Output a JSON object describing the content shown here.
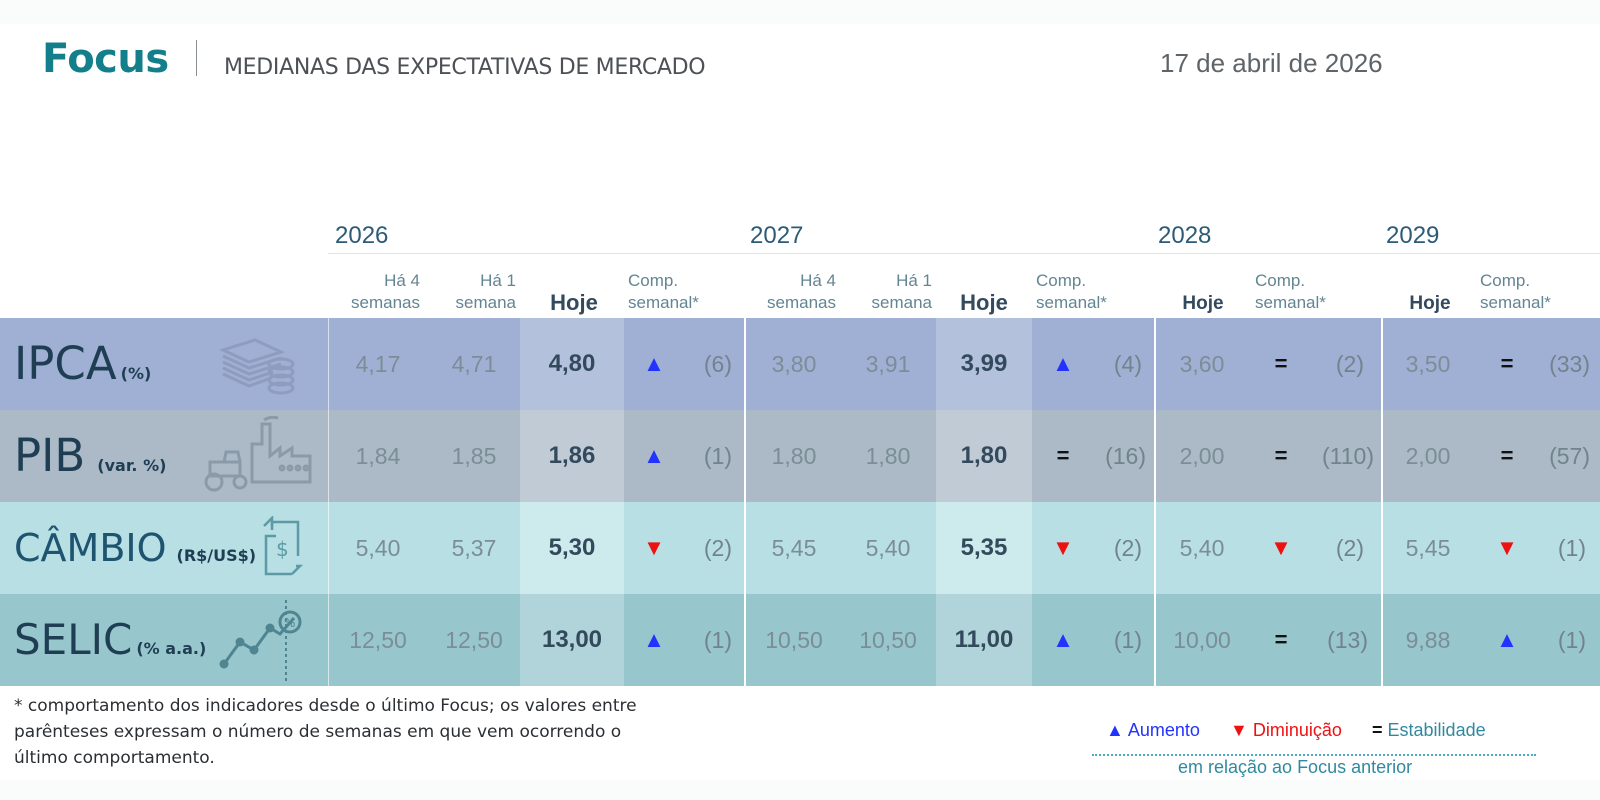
{
  "header": {
    "brand": "Focus",
    "subtitle": "MEDIANAS DAS EXPECTATIVAS DE MERCADO",
    "date": "17 de abril de 2026"
  },
  "years": [
    "2026",
    "2027",
    "2028",
    "2029"
  ],
  "column_headers": {
    "ha4_line1": "Há 4",
    "ha4_line2": "semanas",
    "ha1_line1": "Há 1",
    "ha1_line2": "semana",
    "hoje": "Hoje",
    "comp_line1": "Comp.",
    "comp_line2": "semanal*"
  },
  "rows": [
    {
      "name": "IPCA",
      "unit": "(%)",
      "icon": "coins-icon",
      "y2026": {
        "ha4": "4,17",
        "ha1": "4,71",
        "hoje": "4,80",
        "dir": "up",
        "weeks": "(6)"
      },
      "y2027": {
        "ha4": "3,80",
        "ha1": "3,91",
        "hoje": "3,99",
        "dir": "up",
        "weeks": "(4)"
      },
      "y2028": {
        "hoje": "3,60",
        "dir": "eq",
        "weeks": "(2)"
      },
      "y2029": {
        "hoje": "3,50",
        "dir": "eq",
        "weeks": "(33)"
      }
    },
    {
      "name": "PIB",
      "unit": "(var. %)",
      "icon": "factory-tractor-icon",
      "y2026": {
        "ha4": "1,84",
        "ha1": "1,85",
        "hoje": "1,86",
        "dir": "up",
        "weeks": "(1)"
      },
      "y2027": {
        "ha4": "1,80",
        "ha1": "1,80",
        "hoje": "1,80",
        "dir": "eq",
        "weeks": "(16)"
      },
      "y2028": {
        "hoje": "2,00",
        "dir": "eq",
        "weeks": "(110)"
      },
      "y2029": {
        "hoje": "2,00",
        "dir": "eq",
        "weeks": "(57)"
      }
    },
    {
      "name": "CÂMBIO",
      "unit": "(R$/US$)",
      "icon": "exchange-icon",
      "y2026": {
        "ha4": "5,40",
        "ha1": "5,37",
        "hoje": "5,30",
        "dir": "down",
        "weeks": "(2)"
      },
      "y2027": {
        "ha4": "5,45",
        "ha1": "5,40",
        "hoje": "5,35",
        "dir": "down",
        "weeks": "(2)"
      },
      "y2028": {
        "hoje": "5,40",
        "dir": "down",
        "weeks": "(2)"
      },
      "y2029": {
        "hoje": "5,45",
        "dir": "down",
        "weeks": "(1)"
      }
    },
    {
      "name": "SELIC",
      "unit": "(% a.a.)",
      "icon": "trend-percent-icon",
      "y2026": {
        "ha4": "12,50",
        "ha1": "12,50",
        "hoje": "13,00",
        "dir": "up",
        "weeks": "(1)"
      },
      "y2027": {
        "ha4": "10,50",
        "ha1": "10,50",
        "hoje": "11,00",
        "dir": "up",
        "weeks": "(1)"
      },
      "y2028": {
        "hoje": "10,00",
        "dir": "eq",
        "weeks": "(13)"
      },
      "y2029": {
        "hoje": "9,88",
        "dir": "up",
        "weeks": "(1)"
      }
    }
  ],
  "colors": {
    "ipca": {
      "base": "#9fb0d4",
      "hoje": "#b3c1dd"
    },
    "pib": {
      "base": "#abbac6",
      "hoje": "#c0cbd5"
    },
    "cambio": {
      "base": "#b8dfe3",
      "hoje": "#cdeaec"
    },
    "selic": {
      "base": "#98c6cd",
      "hoje": "#b0d4d9"
    },
    "up": "#2233ff",
    "down": "#ee1111"
  },
  "footnote": "* comportamento dos indicadores desde o último Focus; os valores entre parênteses expressam o número de semanas em que vem ocorrendo o último comportamento.",
  "legend": {
    "up_symbol": "▲",
    "up_label": "Aumento",
    "down_symbol": "▼",
    "down_label": "Diminuição",
    "eq_symbol": "=",
    "eq_label": "Estabilidade",
    "reference": "em relação ao Focus anterior"
  }
}
